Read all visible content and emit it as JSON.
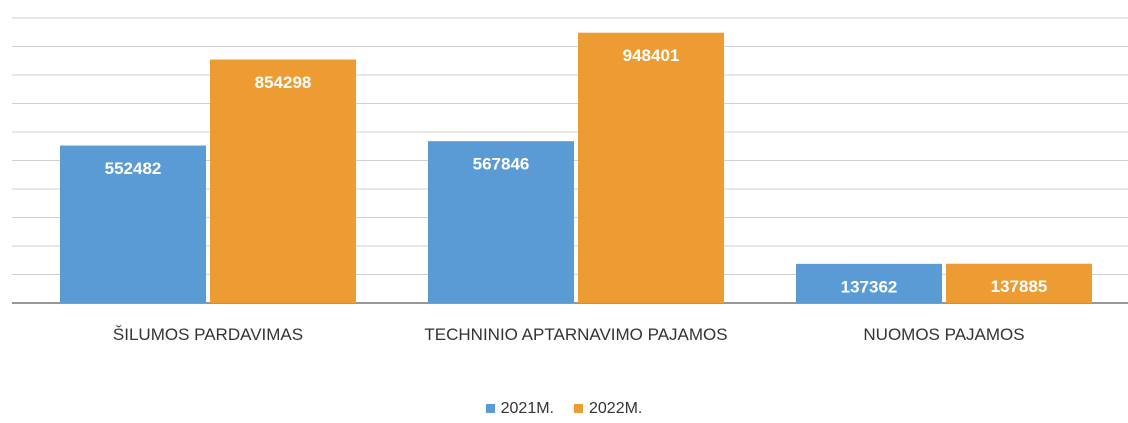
{
  "chart_data": {
    "type": "bar",
    "categories": [
      "ŠILUMOS PARDAVIMAS",
      "TECHNINIO APTARNAVIMO PAJAMOS",
      "NUOMOS PAJAMOS"
    ],
    "series": [
      {
        "name": "2021M.",
        "color": "#5b9bd5",
        "values": [
          552482,
          567846,
          137362
        ]
      },
      {
        "name": "2022M.",
        "color": "#ed9c33",
        "values": [
          854298,
          948401,
          137885
        ]
      }
    ],
    "ylim": [
      0,
      1000000
    ],
    "yticks": [
      0,
      100000,
      200000,
      300000,
      400000,
      500000,
      600000,
      700000,
      800000,
      900000,
      1000000
    ],
    "grid": true
  }
}
